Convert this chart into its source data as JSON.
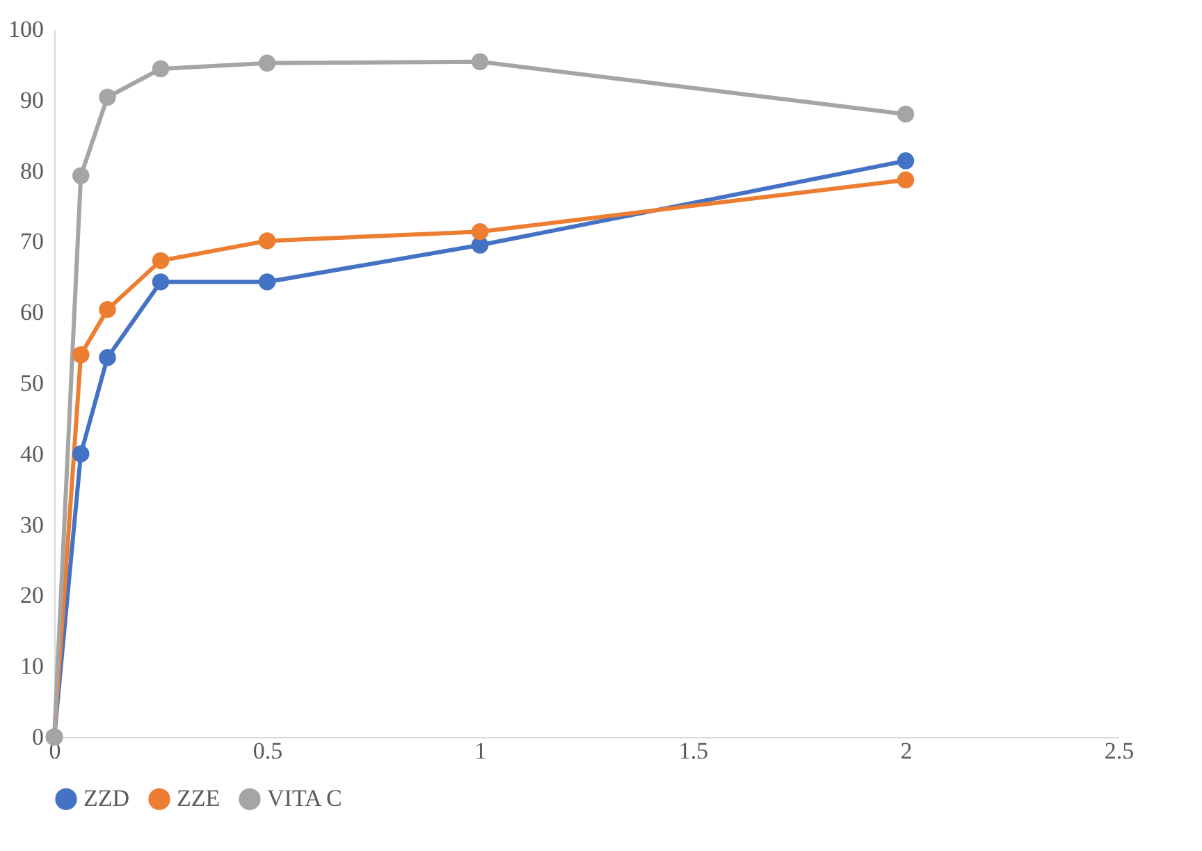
{
  "chart_data": {
    "type": "line",
    "x": [
      0,
      0.0625,
      0.125,
      0.25,
      0.5,
      1,
      2
    ],
    "series": [
      {
        "name": "ZZD",
        "color": "#4472c4",
        "values": [
          0,
          40,
          53.6,
          64.3,
          64.3,
          69.5,
          81.4
        ]
      },
      {
        "name": "ZZE",
        "color": "#ed7d31",
        "values": [
          0,
          54,
          60.4,
          67.3,
          70.1,
          71.4,
          78.7
        ]
      },
      {
        "name": "VITA C",
        "color": "#a5a5a5",
        "values": [
          0,
          79.3,
          90.4,
          94.4,
          95.2,
          95.4,
          88
        ]
      }
    ],
    "xlim": [
      0,
      2.5
    ],
    "xticks": [
      0,
      0.5,
      1,
      1.5,
      2,
      2.5
    ],
    "ylim": [
      0,
      100
    ],
    "yticks": [
      0,
      10,
      20,
      30,
      40,
      50,
      60,
      70,
      80,
      90,
      100
    ],
    "grid": false,
    "legend": "bottom",
    "marker": "circle",
    "line_style": "solid"
  }
}
